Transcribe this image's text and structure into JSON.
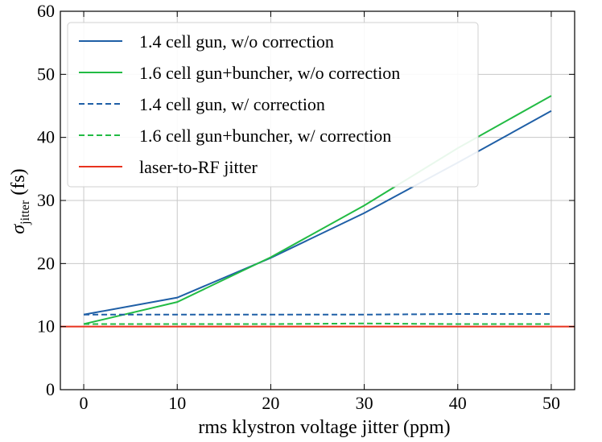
{
  "chart_data": {
    "type": "line",
    "title": "",
    "xlabel": "rms klystron voltage jitter (ppm)",
    "ylabel": {
      "sigma": "σ",
      "subscript": "jitter",
      "unit": " (fs)"
    },
    "x": [
      0,
      10,
      20,
      30,
      40,
      50
    ],
    "xlim": [
      -2.5,
      52.5
    ],
    "ylim": [
      0,
      60
    ],
    "xticks": [
      "0",
      "10",
      "20",
      "30",
      "40",
      "50"
    ],
    "yticks": [
      "0",
      "10",
      "20",
      "30",
      "40",
      "50",
      "60"
    ],
    "grid": true,
    "legend_position": "top-left",
    "series": [
      {
        "name": "1.4 cell gun, w/o correction",
        "values": [
          11.9,
          14.6,
          20.9,
          28.0,
          36.0,
          44.2
        ],
        "color": "#1f5fa6",
        "style": "solid"
      },
      {
        "name": "1.6 cell gun+buncher, w/o correction",
        "values": [
          10.4,
          13.9,
          21.0,
          29.2,
          38.3,
          46.6
        ],
        "color": "#22bb44",
        "style": "solid"
      },
      {
        "name": "1.4 cell gun, w/ correction",
        "values": [
          11.9,
          11.9,
          11.9,
          11.9,
          12.0,
          12.0
        ],
        "color": "#1f5fa6",
        "style": "dashed"
      },
      {
        "name": "1.6 cell gun+buncher, w/ correction",
        "values": [
          10.4,
          10.4,
          10.4,
          10.5,
          10.4,
          10.4
        ],
        "color": "#22bb44",
        "style": "dashed"
      },
      {
        "name": "laser-to-RF jitter",
        "values": [
          10,
          10,
          10,
          10,
          10,
          10
        ],
        "color": "#e8321e",
        "style": "solid",
        "hline": true
      }
    ]
  }
}
